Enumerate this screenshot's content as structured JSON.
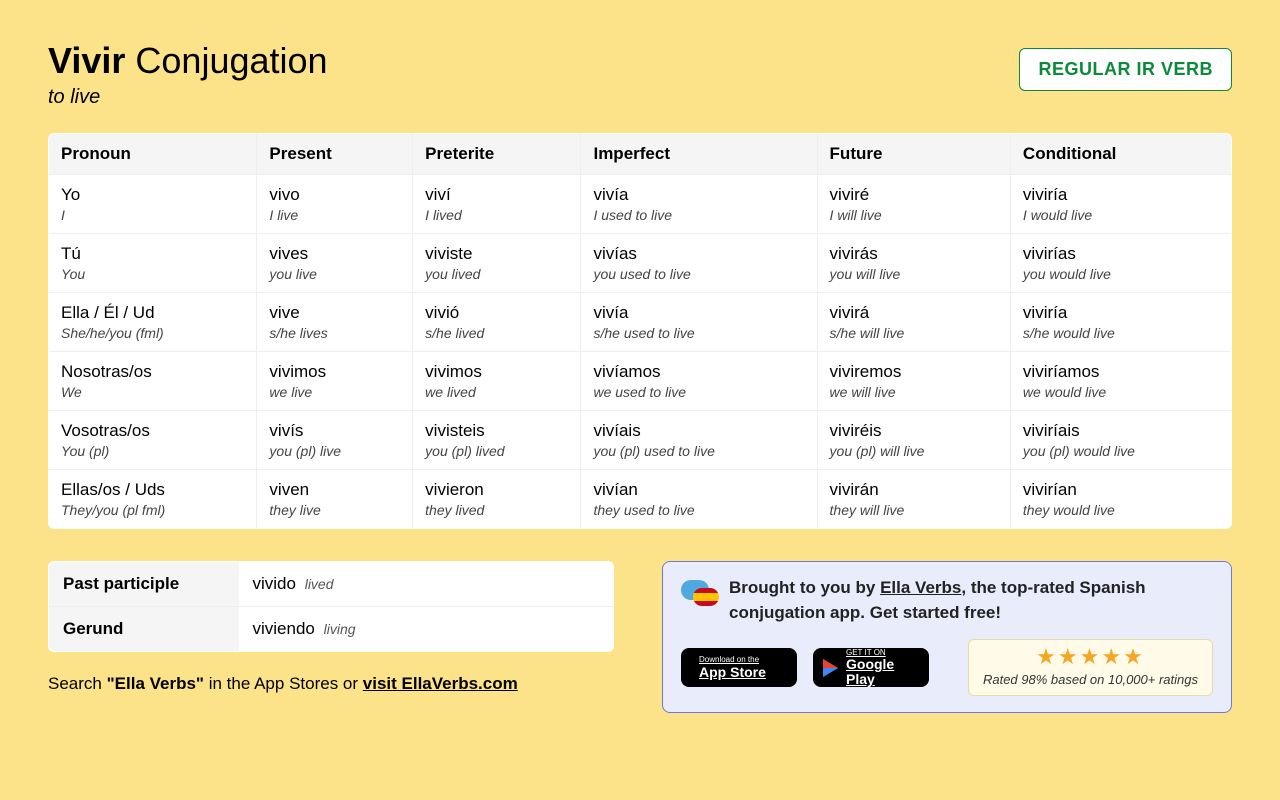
{
  "header": {
    "verb": "Vivir",
    "title_suffix": " Conjugation",
    "subtitle": "to live",
    "badge": "REGULAR IR VERB"
  },
  "table": {
    "columns": [
      "Pronoun",
      "Present",
      "Preterite",
      "Imperfect",
      "Future",
      "Conditional"
    ],
    "rows": [
      {
        "pronoun": {
          "m": "Yo",
          "g": "I"
        },
        "cells": [
          {
            "m": "vivo",
            "g": "I live"
          },
          {
            "m": "viví",
            "g": "I lived"
          },
          {
            "m": "vivía",
            "g": "I used to live"
          },
          {
            "m": "viviré",
            "g": "I will live"
          },
          {
            "m": "viviría",
            "g": "I would live"
          }
        ]
      },
      {
        "pronoun": {
          "m": "Tú",
          "g": "You"
        },
        "cells": [
          {
            "m": "vives",
            "g": "you live"
          },
          {
            "m": "viviste",
            "g": "you lived"
          },
          {
            "m": "vivías",
            "g": "you used to live"
          },
          {
            "m": "vivirás",
            "g": "you will live"
          },
          {
            "m": "vivirías",
            "g": "you would live"
          }
        ]
      },
      {
        "pronoun": {
          "m": "Ella / Él / Ud",
          "g": "She/he/you (fml)"
        },
        "cells": [
          {
            "m": "vive",
            "g": "s/he lives"
          },
          {
            "m": "vivió",
            "g": "s/he lived"
          },
          {
            "m": "vivía",
            "g": "s/he used to live"
          },
          {
            "m": "vivirá",
            "g": "s/he will live"
          },
          {
            "m": "viviría",
            "g": "s/he would live"
          }
        ]
      },
      {
        "pronoun": {
          "m": "Nosotras/os",
          "g": "We"
        },
        "cells": [
          {
            "m": "vivimos",
            "g": "we live"
          },
          {
            "m": "vivimos",
            "g": "we lived"
          },
          {
            "m": "vivíamos",
            "g": "we used to live"
          },
          {
            "m": "viviremos",
            "g": "we will live"
          },
          {
            "m": "viviríamos",
            "g": "we would live"
          }
        ]
      },
      {
        "pronoun": {
          "m": "Vosotras/os",
          "g": "You (pl)"
        },
        "cells": [
          {
            "m": "vivís",
            "g": "you (pl) live"
          },
          {
            "m": "vivisteis",
            "g": "you (pl) lived"
          },
          {
            "m": "vivíais",
            "g": "you (pl) used to live"
          },
          {
            "m": "viviréis",
            "g": "you (pl) will live"
          },
          {
            "m": "viviríais",
            "g": "you (pl) would live"
          }
        ]
      },
      {
        "pronoun": {
          "m": "Ellas/os / Uds",
          "g": "They/you (pl fml)"
        },
        "cells": [
          {
            "m": "viven",
            "g": "they live"
          },
          {
            "m": "vivieron",
            "g": "they lived"
          },
          {
            "m": "vivían",
            "g": "they used to live"
          },
          {
            "m": "vivirán",
            "g": "they will live"
          },
          {
            "m": "vivirían",
            "g": "they would live"
          }
        ]
      }
    ]
  },
  "forms": {
    "past_participle": {
      "label": "Past participle",
      "m": "vivido",
      "g": "lived"
    },
    "gerund": {
      "label": "Gerund",
      "m": "viviendo",
      "g": "living"
    }
  },
  "search_line": {
    "prefix": "Search ",
    "bold": "\"Ella Verbs\"",
    "mid": " in the App Stores or ",
    "link": "visit EllaVerbs.com"
  },
  "promo": {
    "text_prefix": "Brought to you by ",
    "link": "Ella Verbs",
    "text_suffix": ", the top-rated Spanish conjugation app. Get started free!",
    "appstore": {
      "small": "Download on the",
      "big": "App Store"
    },
    "gplay": {
      "small": "GET IT ON",
      "big": "Google Play"
    },
    "stars": "★★★★★",
    "rating_text": "Rated 98% based on 10,000+ ratings"
  },
  "colors": {
    "page_bg": "#fce38a",
    "badge_border": "#0a8a3a",
    "promo_border": "#6c7bdb",
    "promo_bg": "#e8ecfb",
    "star": "#f5a623"
  }
}
